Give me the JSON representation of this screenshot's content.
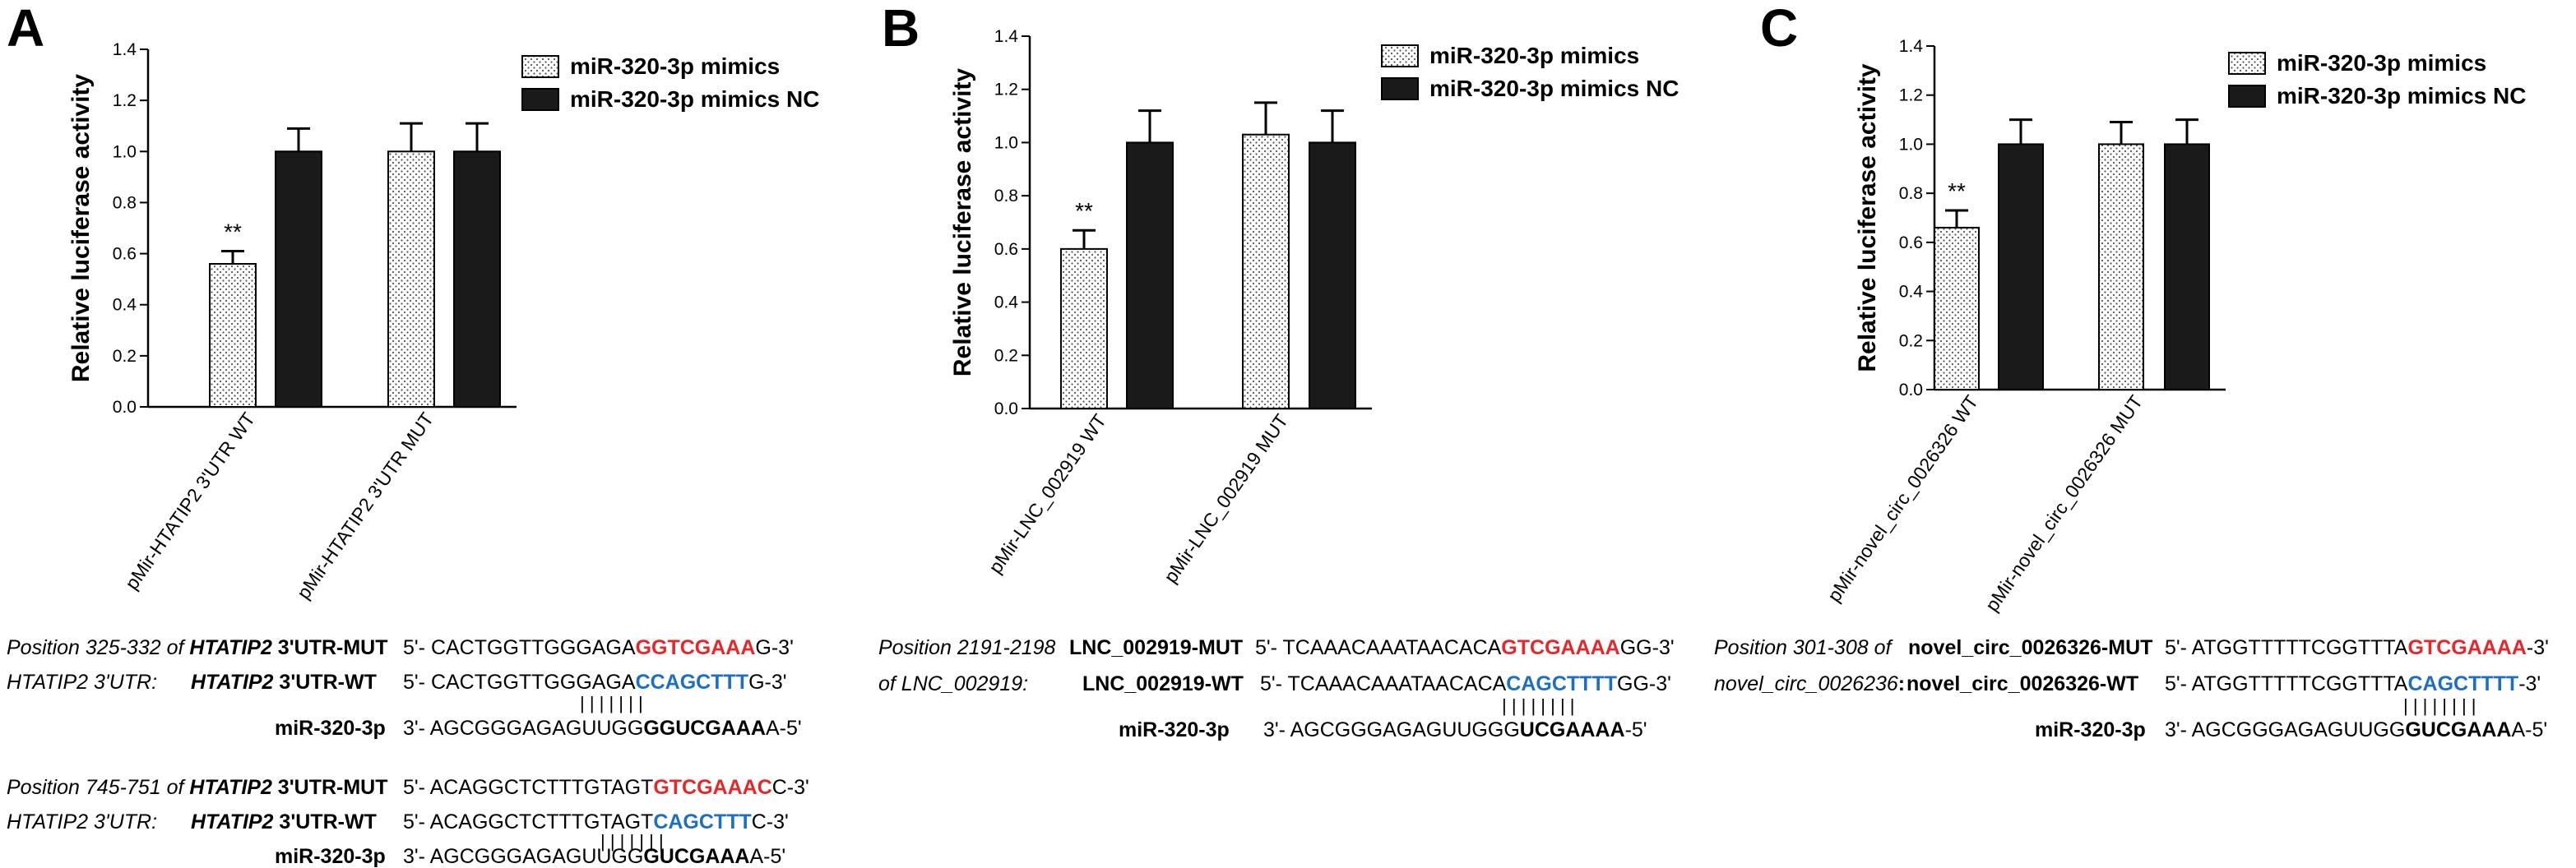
{
  "panels": [
    {
      "letter": "A",
      "chart_data": {
        "type": "bar",
        "ylabel": "Relative luciferase activity",
        "ylim": [
          0,
          1.4
        ],
        "yticks": [
          "0.0",
          "0.2",
          "0.4",
          "0.6",
          "0.8",
          "1.0",
          "1.2",
          "1.4"
        ],
        "categories": [
          "pMir-HTATIP2 3'UTR WT",
          "pMir-HTATIP2 3'UTR MUT"
        ],
        "series": [
          {
            "name": "miR-320-3p mimics",
            "values": [
              0.56,
              1.0
            ],
            "errors": [
              0.05,
              0.11
            ],
            "fill": "dotted"
          },
          {
            "name": "miR-320-3p mimics NC",
            "values": [
              1.0,
              1.0
            ],
            "errors": [
              0.09,
              0.11
            ],
            "fill": "#1a1a1a"
          }
        ],
        "annotations": [
          {
            "text": "**",
            "category": 0,
            "series": 0
          }
        ]
      }
    },
    {
      "letter": "B",
      "chart_data": {
        "type": "bar",
        "ylabel": "Relative luciferase activity",
        "ylim": [
          0,
          1.4
        ],
        "yticks": [
          "0.0",
          "0.2",
          "0.4",
          "0.6",
          "0.8",
          "1.0",
          "1.2",
          "1.4"
        ],
        "categories": [
          "pMir-LNC_002919 WT",
          "pMir-LNC_002919 MUT"
        ],
        "series": [
          {
            "name": "miR-320-3p mimics",
            "values": [
              0.6,
              1.03
            ],
            "errors": [
              0.07,
              0.12
            ],
            "fill": "dotted"
          },
          {
            "name": "miR-320-3p mimics NC",
            "values": [
              1.0,
              1.0
            ],
            "errors": [
              0.12,
              0.12
            ],
            "fill": "#1a1a1a"
          }
        ],
        "annotations": [
          {
            "text": "**",
            "category": 0,
            "series": 0
          }
        ]
      }
    },
    {
      "letter": "C",
      "chart_data": {
        "type": "bar",
        "ylabel": "Relative luciferase activity",
        "ylim": [
          0,
          1.4
        ],
        "yticks": [
          "0.0",
          "0.2",
          "0.4",
          "0.6",
          "0.8",
          "1.0",
          "1.2",
          "1.4"
        ],
        "categories": [
          "pMir-novel_circ_0026326 WT",
          "pMir-novel_circ_0026326 MUT"
        ],
        "series": [
          {
            "name": "miR-320-3p mimics",
            "values": [
              0.66,
              1.0
            ],
            "errors": [
              0.07,
              0.09
            ],
            "fill": "dotted"
          },
          {
            "name": "miR-320-3p mimics NC",
            "values": [
              1.0,
              1.0
            ],
            "errors": [
              0.1,
              0.1
            ],
            "fill": "#1a1a1a"
          }
        ],
        "annotations": [
          {
            "text": "**",
            "category": 0,
            "series": 0
          }
        ]
      }
    }
  ],
  "alignments": {
    "A1": {
      "pos1": "Position 325-332 of ",
      "pos2": "HTATIP2 3'UTR:",
      "mut_gene": "HTATIP2",
      "mut_suffix": " 3'UTR-MUT",
      "wt_gene": "HTATIP2",
      "wt_suffix": " 3'UTR-WT",
      "mut_seq": [
        "5'- CACTGGTTGGGAGA",
        "GGTCGAAA",
        "G-3'"
      ],
      "wt_seq": [
        "5'- CACTGGTTGGGAGA",
        "CCAGCTTT",
        "G-3'"
      ],
      "bars": "| | | | | | |",
      "mirna": "miR-320-3p",
      "mirna_seq": [
        "3'- AGCGGGAGAGUUGG",
        "GGUCGAAA",
        "A-5'"
      ]
    },
    "A2": {
      "pos1": "Position 745-751 of ",
      "pos2": "HTATIP2 3'UTR:",
      "mut_gene": "HTATIP2",
      "mut_suffix": " 3'UTR-MUT",
      "wt_gene": "HTATIP2",
      "wt_suffix": " 3'UTR-WT",
      "mut_seq": [
        "5'- ACAGGCTCTTTGTAGT",
        "GTCGAAAC",
        "C-3'"
      ],
      "wt_seq": [
        "5'- ACAGGCTCTTTGTAGT",
        "CAGCTTT",
        "C-3'"
      ],
      "bars": "| | | | | | |",
      "mirna": "miR-320-3p",
      "mirna_seq": [
        "3'- AGCGGGAGAGUUGG",
        "GUCGAAA",
        "A-5'"
      ]
    },
    "B": {
      "pos1": "Position 2191-2198",
      "pos2": "of LNC_002919:",
      "mut_label": "LNC_002919-MUT",
      "wt_label": "LNC_002919-WT",
      "mut_seq": [
        "5'- TCAAACAAATAACACA",
        "GTCGAAAA",
        "GG-3'"
      ],
      "wt_seq": [
        "5'- TCAAACAAATAACACA",
        "CAGCTTTT",
        "GG-3'"
      ],
      "bars": "| | | | | | | |",
      "mirna": "miR-320-3p",
      "mirna_seq": [
        "3'- AGCGGGAGAGUUGGG",
        "UCGAAAA",
        "-5'"
      ]
    },
    "C": {
      "pos1": "Position 301-308 of",
      "pos2": "novel_circ_0026236",
      "pos2_colon": ":",
      "mut_label": "novel_circ_0026326-MUT",
      "wt_label": "novel_circ_0026326-WT",
      "mut_seq": [
        "5'- ATGGTTTTTCGGTTTA",
        "GTCGAAAA",
        "-3'"
      ],
      "wt_seq": [
        "5'- ATGGTTTTTCGGTTTA",
        "CAGCTTTT",
        "-3'"
      ],
      "bars": "| | | | | | | |",
      "mirna": "miR-320-3p",
      "mirna_seq": [
        "3'- AGCGGGAGAGUUGG",
        "GUCGAAA",
        "A-5'"
      ]
    }
  }
}
